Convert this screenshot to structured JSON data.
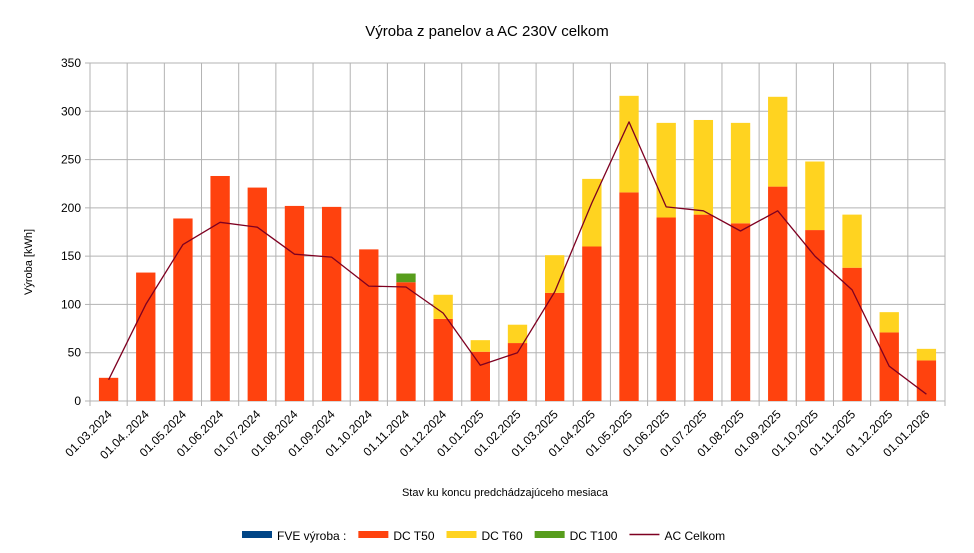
{
  "chart_data": {
    "type": "bar",
    "title": "Výroba z panelov a AC  230V celkom",
    "xlabel": "Stav ku koncu predchádzajúceho mesiaca",
    "ylabel": "Výroba [kWh]",
    "ylim": [
      0,
      350
    ],
    "yticks": [
      0,
      50,
      100,
      150,
      200,
      250,
      300,
      350
    ],
    "grid": true,
    "stacked": true,
    "legend_position": "bottom",
    "categories": [
      "01.03.2024",
      "01.04..2024",
      "01.05.2024",
      "01.06.2024",
      "01.07.2024",
      "01.08.2024",
      "01.09.2024",
      "01.10.2024",
      "01.11.2024",
      "01.12.2024",
      "01.01.2025",
      "01.02.2025",
      "01.03.2025",
      "01.04.2025",
      "01.05.2025",
      "01.06.2025",
      "01.07.2025",
      "01.08.2025",
      "01.09.2025",
      "01.10.2025",
      "01.11.2025",
      "01.12.2025",
      "01.01.2026"
    ],
    "series": [
      {
        "name": "FVE výroba :",
        "kind": "bar",
        "color": "#004586",
        "values": [
          0,
          0,
          0,
          0,
          0,
          0,
          0,
          0,
          0,
          0,
          0,
          0,
          0,
          0,
          0,
          0,
          0,
          0,
          0,
          0,
          0,
          0,
          0
        ]
      },
      {
        "name": "DC T50",
        "kind": "bar",
        "color": "#ff420e",
        "values": [
          24,
          133,
          189,
          233,
          221,
          202,
          201,
          157,
          123,
          85,
          51,
          60,
          112,
          160,
          216,
          190,
          193,
          184,
          222,
          177,
          138,
          71,
          42
        ]
      },
      {
        "name": "DC T60",
        "kind": "bar",
        "color": "#ffd320",
        "values": [
          0,
          0,
          0,
          0,
          0,
          0,
          0,
          0,
          0,
          25,
          12,
          19,
          39,
          70,
          100,
          98,
          98,
          104,
          93,
          71,
          55,
          21,
          12
        ]
      },
      {
        "name": "DC T100",
        "kind": "bar",
        "color": "#579d1c",
        "values": [
          0,
          0,
          0,
          0,
          0,
          0,
          0,
          0,
          9,
          0,
          0,
          0,
          0,
          0,
          0,
          0,
          0,
          0,
          0,
          0,
          0,
          0,
          0
        ]
      },
      {
        "name": "AC Celkom",
        "kind": "line",
        "color": "#7e0021",
        "values": [
          22,
          100,
          162,
          185,
          180,
          152,
          149,
          119,
          118,
          91,
          37,
          50,
          113,
          205,
          289,
          201,
          197,
          176,
          197,
          150,
          115,
          36,
          7
        ]
      }
    ]
  }
}
